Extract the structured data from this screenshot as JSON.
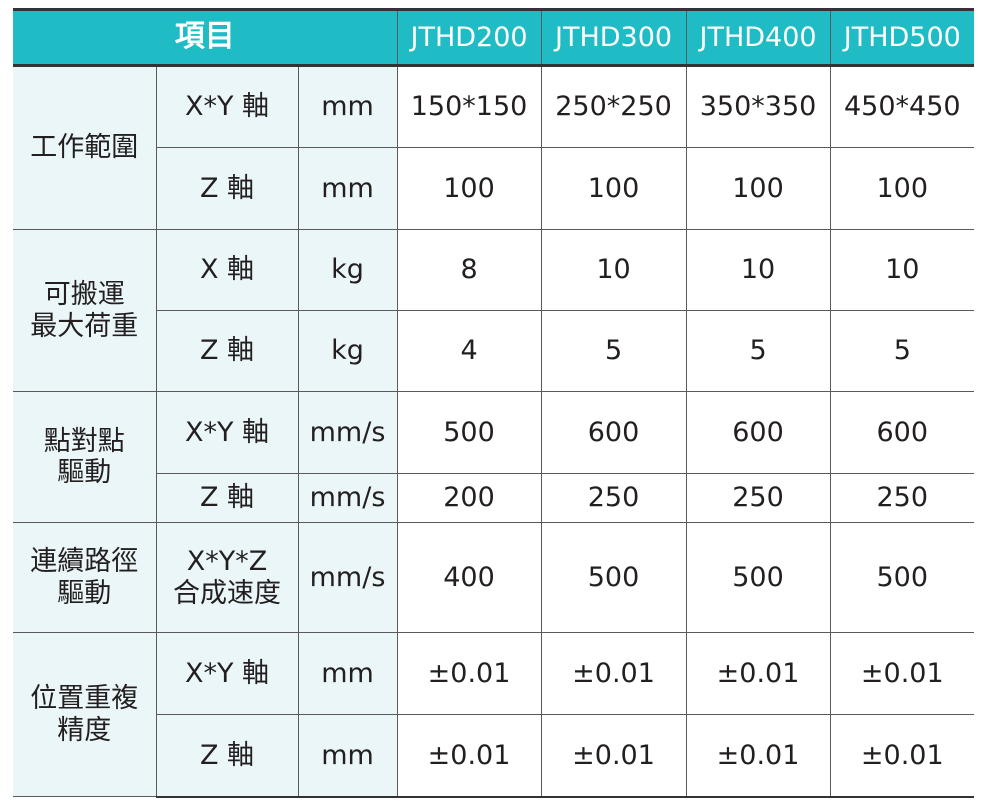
{
  "header": {
    "item": "項目",
    "models": [
      "JTHD200",
      "JTHD300",
      "JTHD400",
      "JTHD500"
    ]
  },
  "groups": [
    {
      "name": "工作範圍",
      "rows": [
        {
          "axis": "X*Y 軸",
          "unit": "mm",
          "values": [
            "150*150",
            "250*250",
            "350*350",
            "450*450"
          ]
        },
        {
          "axis": "Z 軸",
          "unit": "mm",
          "values": [
            "100",
            "100",
            "100",
            "100"
          ]
        }
      ]
    },
    {
      "name": "可搬運\n最大荷重",
      "rows": [
        {
          "axis": "X 軸",
          "unit": "kg",
          "values": [
            "8",
            "10",
            "10",
            "10"
          ]
        },
        {
          "axis": "Z 軸",
          "unit": "kg",
          "values": [
            "4",
            "5",
            "5",
            "5"
          ]
        }
      ]
    },
    {
      "name": "點對點\n驅動",
      "rows": [
        {
          "axis": "X*Y 軸",
          "unit": "mm/s",
          "values": [
            "500",
            "600",
            "600",
            "600"
          ]
        },
        {
          "axis": "Z 軸",
          "unit": "mm/s",
          "values": [
            "200",
            "250",
            "250",
            "250"
          ]
        }
      ]
    },
    {
      "name": "連續路徑\n驅動",
      "rows": [
        {
          "axis": "X*Y*Z\n合成速度",
          "unit": "mm/s",
          "values": [
            "400",
            "500",
            "500",
            "500"
          ]
        }
      ]
    },
    {
      "name": "位置重複\n精度",
      "rows": [
        {
          "axis": "X*Y 軸",
          "unit": "mm",
          "values": [
            "±0.01",
            "±0.01",
            "±0.01",
            "±0.01"
          ]
        },
        {
          "axis": "Z 軸",
          "unit": "mm",
          "values": [
            "±0.01",
            "±0.01",
            "±0.01",
            "±0.01"
          ]
        }
      ]
    }
  ]
}
